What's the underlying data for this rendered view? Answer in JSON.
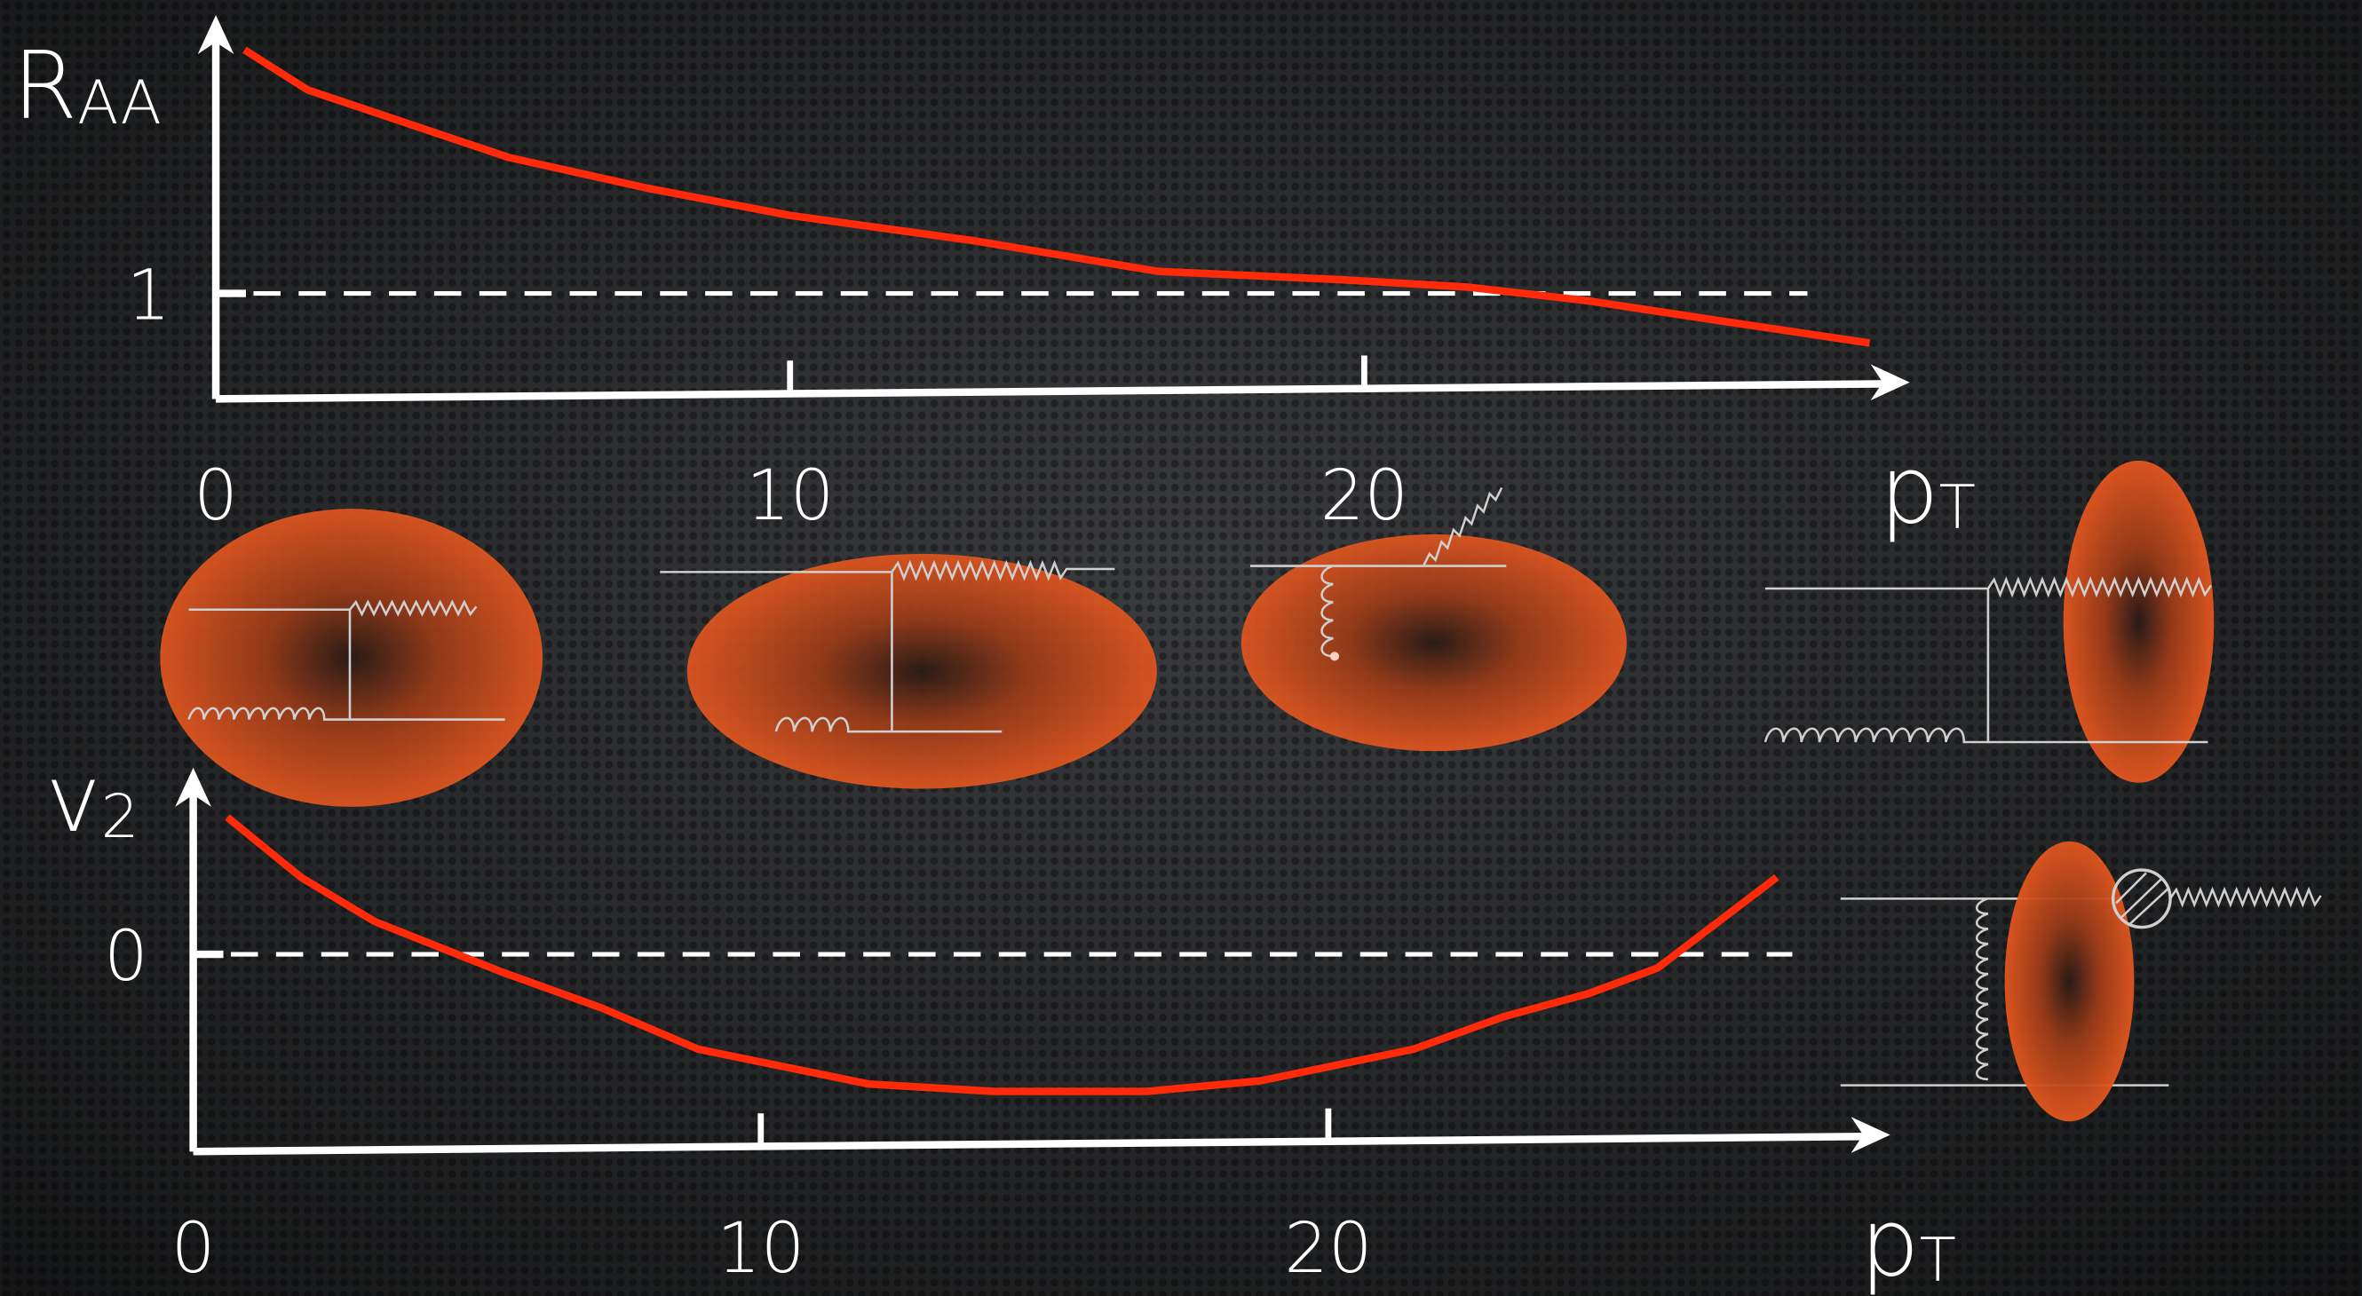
{
  "chart_data": [
    {
      "type": "line",
      "ylabel": "R",
      "ylabel_sub": "AA",
      "xlabel": "p",
      "xlabel_sub": "T",
      "xlim": [
        0,
        29.5
      ],
      "xticks": [
        0,
        10,
        20
      ],
      "ylim": [
        0,
        3.64
      ],
      "yticks": [
        1
      ],
      "reference_line": true,
      "series": [
        {
          "color": "#ff2a0a",
          "x": [
            0.5,
            1.6,
            5.1,
            7.5,
            10,
            13.2,
            16.4,
            19.6,
            21.8,
            23.9,
            26.2,
            28.8
          ],
          "values": [
            3.31,
            2.93,
            2.29,
            2.0,
            1.74,
            1.5,
            1.21,
            1.13,
            1.06,
            0.93,
            0.74,
            0.53
          ]
        }
      ]
    },
    {
      "type": "line",
      "ylabel": "v",
      "ylabel_sub": "2",
      "xlabel": "p",
      "xlabel_sub": "T",
      "xlim": [
        0,
        29.9
      ],
      "xticks": [
        0,
        10,
        20
      ],
      "ylim": [
        -1.87,
        1.77
      ],
      "yticks": [
        0
      ],
      "reference_line": true,
      "series": [
        {
          "color": "#ff2a0a",
          "x": [
            0.6,
            1.9,
            3.2,
            5.4,
            7.2,
            8.9,
            11.9,
            14.1,
            16.8,
            18.8,
            21.5,
            23.1,
            24.6,
            25.8,
            27.9
          ],
          "values": [
            1.3,
            0.73,
            0.31,
            -0.16,
            -0.51,
            -0.9,
            -1.23,
            -1.3,
            -1.3,
            -1.2,
            -0.9,
            -0.59,
            -0.37,
            -0.13,
            0.73
          ]
        }
      ]
    }
  ]
}
